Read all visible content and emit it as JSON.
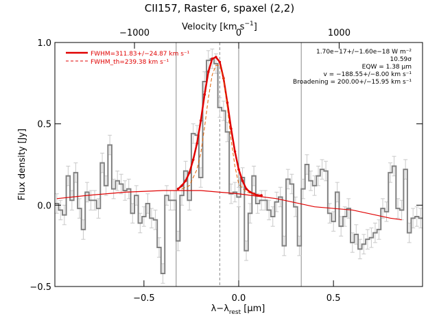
{
  "chart_data": {
    "type": "line",
    "title": "CII157, Raster 6, spaxel (2,2)",
    "xlabel": "λ−λ_rest [μm]",
    "xlabel_parts": {
      "main": "λ−λ",
      "sub": "rest",
      "unit": " [μm]"
    },
    "ylabel": "Flux density [Jy]",
    "top_axis_label": "Velocity [km s⁻¹]",
    "top_axis_label_parts": {
      "main": "Velocity [km s",
      "sup": "−1",
      "close": "]"
    },
    "xlim": [
      -0.97,
      0.97
    ],
    "ylim": [
      -0.5,
      1.0
    ],
    "x_ticks": [
      {
        "value": -0.5,
        "label": "−0.5"
      },
      {
        "value": 0.0,
        "label": "0.0"
      },
      {
        "value": 0.5,
        "label": "0.5"
      }
    ],
    "y_ticks": [
      {
        "value": -0.5,
        "label": "−0.5"
      },
      {
        "value": 0.0,
        "label": "0.0"
      },
      {
        "value": 0.5,
        "label": "0.5"
      },
      {
        "value": 1.0,
        "label": "1.0"
      }
    ],
    "top_ticks": [
      {
        "value": -0.55,
        "label": "−1000"
      },
      {
        "value": 0.0,
        "label": "0"
      },
      {
        "value": 0.53,
        "label": "1000"
      }
    ],
    "vertical_lines": {
      "solid_gray": [
        -0.33,
        0.0,
        0.33
      ],
      "dashed_gray": [
        -0.1
      ]
    },
    "annotations": [
      "1.70e−17+/−1.60e−18 W m⁻²",
      "10.59σ",
      "EQW = 1.38 μm",
      "v = −188.55+/−8.00 km s⁻¹",
      "Broadening = 200.00+/−15.95 km s⁻¹"
    ],
    "legend": {
      "placement": "top-left",
      "entries": [
        {
          "label": "FWHM=311.83+/−24.87 km s⁻¹",
          "style": "solid",
          "color": "#e00000"
        },
        {
          "label": "FWHM_th=239.38 km s⁻¹",
          "style": "dashed",
          "color": "#e00000"
        }
      ]
    },
    "series": [
      {
        "style": "histogram-step",
        "color": "#808080",
        "x": [
          -0.96,
          -0.94,
          -0.92,
          -0.9,
          -0.88,
          -0.86,
          -0.84,
          -0.82,
          -0.8,
          -0.78,
          -0.76,
          -0.74,
          -0.72,
          -0.7,
          -0.68,
          -0.66,
          -0.64,
          -0.62,
          -0.6,
          -0.58,
          -0.56,
          -0.54,
          -0.52,
          -0.5,
          -0.48,
          -0.46,
          -0.44,
          -0.42,
          -0.4,
          -0.38,
          -0.36,
          -0.34,
          -0.32,
          -0.3,
          -0.28,
          -0.26,
          -0.24,
          -0.22,
          -0.2,
          -0.18,
          -0.16,
          -0.14,
          -0.12,
          -0.1,
          -0.08,
          -0.06,
          -0.04,
          -0.02,
          0.0,
          0.02,
          0.04,
          0.06,
          0.08,
          0.1,
          0.12,
          0.14,
          0.16,
          0.18,
          0.2,
          0.22,
          0.24,
          0.26,
          0.28,
          0.3,
          0.32,
          0.34,
          0.36,
          0.38,
          0.4,
          0.42,
          0.44,
          0.46,
          0.48,
          0.5,
          0.52,
          0.54,
          0.56,
          0.58,
          0.6,
          0.62,
          0.64,
          0.66,
          0.68,
          0.7,
          0.72,
          0.74,
          0.76,
          0.78,
          0.8,
          0.82,
          0.84,
          0.86,
          0.88,
          0.9,
          0.92,
          0.94,
          0.96
        ],
        "values": [
          0.01,
          -0.03,
          -0.06,
          0.18,
          0.03,
          0.2,
          -0.02,
          -0.15,
          0.08,
          0.03,
          0.03,
          -0.02,
          0.26,
          0.12,
          0.37,
          0.1,
          0.15,
          0.13,
          0.09,
          0.1,
          -0.05,
          0.06,
          -0.11,
          -0.07,
          0.01,
          -0.08,
          -0.09,
          -0.26,
          -0.42,
          0.06,
          0.03,
          0.03,
          -0.22,
          0.06,
          0.21,
          0.03,
          0.44,
          0.43,
          0.17,
          0.76,
          0.89,
          0.9,
          0.87,
          0.6,
          0.58,
          0.45,
          0.07,
          0.08,
          0.05,
          0.17,
          -0.28,
          -0.05,
          0.18,
          0.01,
          0.03,
          0.03,
          -0.03,
          -0.07,
          0.02,
          0.05,
          -0.25,
          0.16,
          0.13,
          -0.01,
          -0.25,
          0.1,
          0.25,
          0.15,
          0.12,
          0.18,
          0.22,
          0.21,
          -0.05,
          -0.1,
          0.08,
          -0.13,
          -0.07,
          -0.02,
          -0.23,
          -0.18,
          -0.27,
          -0.24,
          -0.21,
          -0.2,
          -0.17,
          -0.15,
          -0.02,
          -0.04,
          0.2,
          0.24,
          -0.02,
          -0.03,
          0.22,
          -0.17,
          -0.08,
          -0.07,
          -0.08
        ],
        "errors": 0.06
      },
      {
        "name": "FWHM=311.83+/−24.87 km s⁻¹",
        "style": "solid-thick",
        "color": "#e00000",
        "x": [
          -0.32,
          -0.3,
          -0.28,
          -0.26,
          -0.24,
          -0.22,
          -0.2,
          -0.18,
          -0.16,
          -0.14,
          -0.12,
          -0.1,
          -0.08,
          -0.06,
          -0.04,
          -0.02,
          0.0,
          0.02,
          0.04,
          0.06,
          0.08,
          0.1,
          0.12
        ],
        "values": [
          0.1,
          0.12,
          0.15,
          0.2,
          0.28,
          0.38,
          0.52,
          0.68,
          0.82,
          0.9,
          0.91,
          0.88,
          0.78,
          0.63,
          0.47,
          0.33,
          0.22,
          0.15,
          0.1,
          0.08,
          0.07,
          0.06,
          0.06
        ]
      },
      {
        "name": "continuum",
        "style": "solid-thin",
        "color": "#e00000",
        "x": [
          -0.96,
          -0.8,
          -0.6,
          -0.4,
          -0.2,
          0.0,
          0.2,
          0.4,
          0.6,
          0.8,
          0.86
        ],
        "values": [
          0.04,
          0.06,
          0.08,
          0.09,
          0.09,
          0.07,
          0.04,
          -0.01,
          -0.03,
          -0.08,
          -0.09
        ]
      },
      {
        "name": "FWHM_th=239.38 km s⁻¹",
        "style": "dashed",
        "color": "#e06000",
        "x": [
          -0.3,
          -0.26,
          -0.22,
          -0.2,
          -0.18,
          -0.16,
          -0.14,
          -0.12,
          -0.1,
          -0.08,
          -0.06,
          -0.04,
          -0.02,
          0.0,
          0.04,
          0.08
        ],
        "values": [
          0.1,
          0.12,
          0.22,
          0.32,
          0.48,
          0.66,
          0.8,
          0.86,
          0.86,
          0.78,
          0.6,
          0.4,
          0.24,
          0.13,
          0.08,
          0.07
        ]
      }
    ]
  }
}
